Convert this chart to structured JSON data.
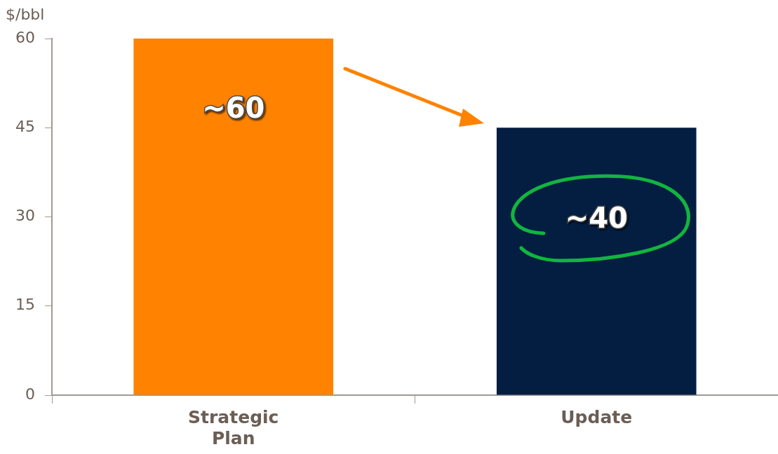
{
  "chart_data": {
    "type": "bar",
    "ylabel": "$/bbl",
    "categories": [
      "Strategic Plan",
      "Update"
    ],
    "values": [
      60,
      45
    ],
    "colors": [
      "#ff8200",
      "#041e42"
    ],
    "value_labels": [
      "~60",
      null
    ],
    "annotations": [
      "~40"
    ],
    "ylim": [
      0,
      60
    ],
    "yticks": [
      0,
      15,
      30,
      45,
      60
    ],
    "grid": false,
    "legend": false
  }
}
